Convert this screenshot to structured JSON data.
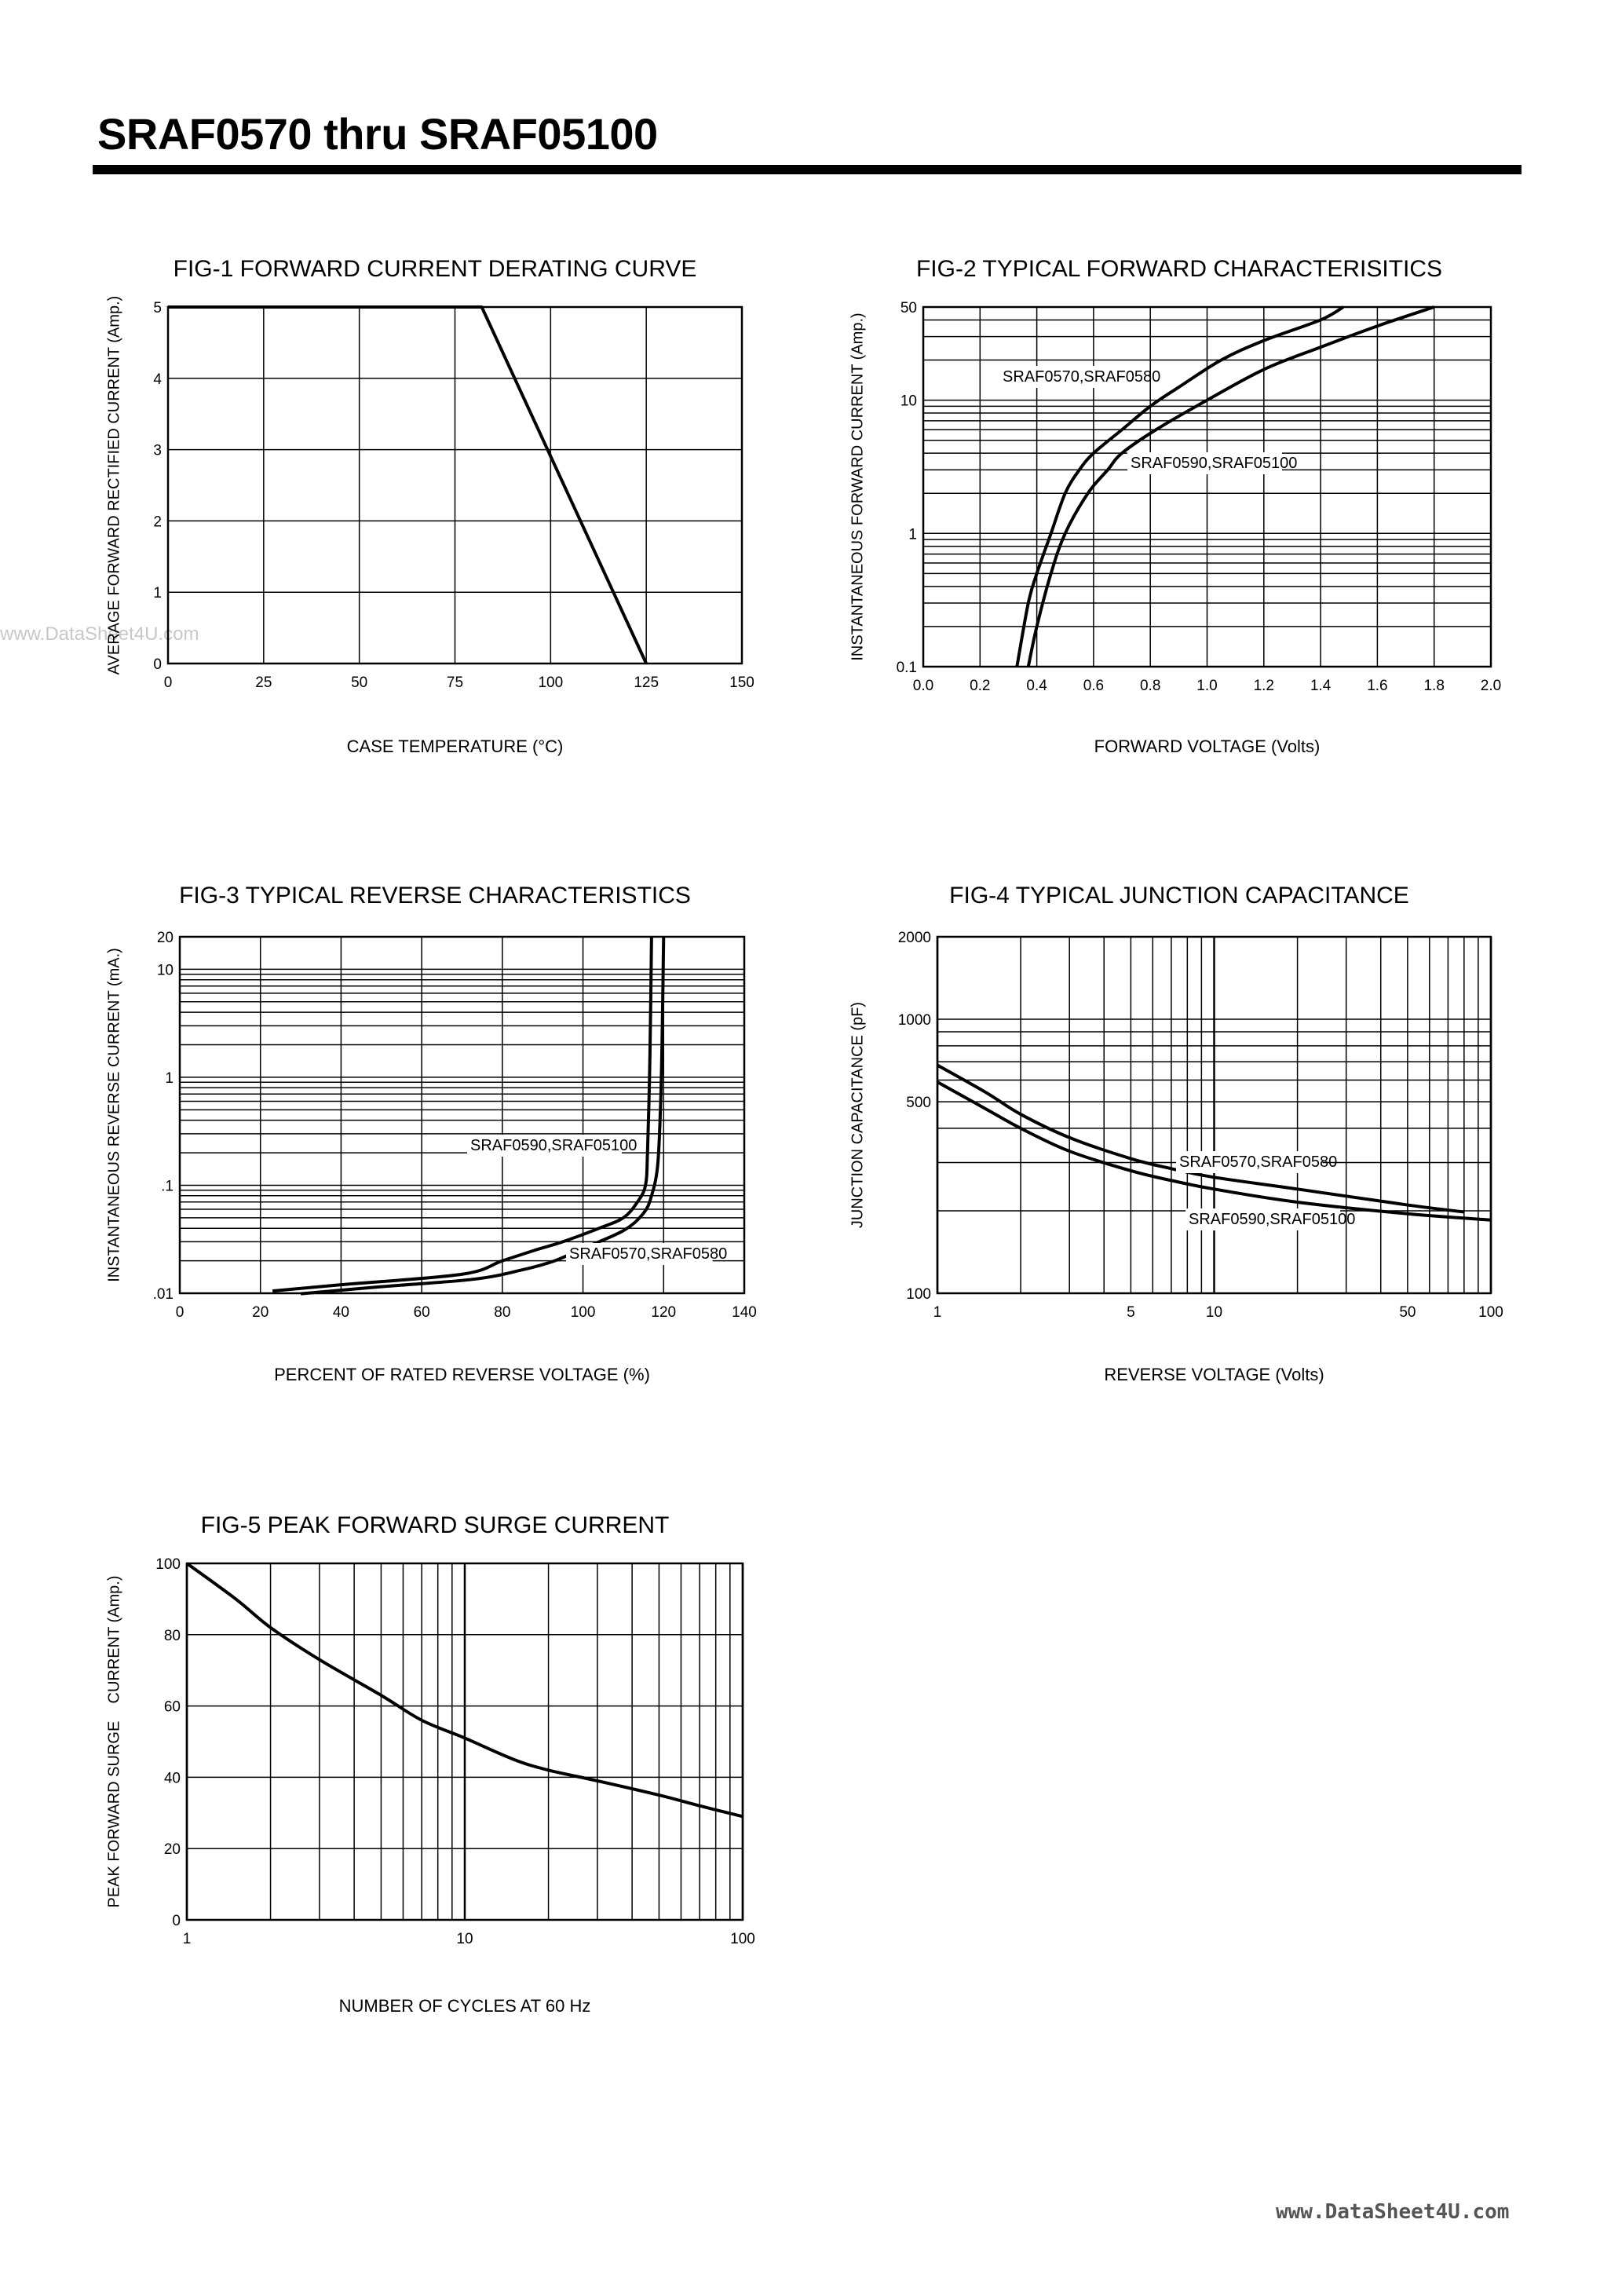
{
  "header": {
    "title": "SRAF0570 thru SRAF05100"
  },
  "watermarks": {
    "left": "www.DataSheet4U.com",
    "bottom_right": "www.DataSheet4U.com"
  },
  "chart_data": [
    {
      "id": "fig1",
      "type": "line",
      "title": "FIG-1 FORWARD CURRENT DERATING CURVE",
      "xlabel": "CASE TEMPERATURE (°C)",
      "ylabel": "AVERAGE FORWARD RECTIFIED CURRENT (Amp.)",
      "xscale": "linear",
      "yscale": "linear",
      "xlim": [
        0,
        150
      ],
      "ylim": [
        0,
        5
      ],
      "xticks": [
        0,
        25,
        50,
        75,
        100,
        125,
        150
      ],
      "xtick_labels": [
        "0",
        "25",
        "50",
        "75",
        "100",
        "125",
        "150"
      ],
      "yticks": [
        0,
        1,
        2,
        3,
        4,
        5
      ],
      "ytick_labels": [
        "0",
        "1",
        "2",
        "3",
        "4",
        "5"
      ],
      "grid": true,
      "series": [
        {
          "x": [
            0,
            82,
            125
          ],
          "y": [
            5,
            5,
            0
          ]
        }
      ]
    },
    {
      "id": "fig2",
      "type": "line",
      "title": "FIG-2 TYPICAL FORWARD CHARACTERISITICS",
      "xlabel": "FORWARD VOLTAGE (Volts)",
      "ylabel": "INSTANTANEOUS FORWARD CURRENT (Amp.)",
      "xscale": "linear",
      "yscale": "log",
      "xlim": [
        0,
        2.0
      ],
      "ylim": [
        0.1,
        50
      ],
      "xticks": [
        0,
        0.2,
        0.4,
        0.6,
        0.8,
        1.0,
        1.2,
        1.4,
        1.6,
        1.8,
        2.0
      ],
      "xtick_labels": [
        "0.0",
        "0.2",
        "0.4",
        "0.6",
        "0.8",
        "1.0",
        "1.2",
        "1.4",
        "1.6",
        "1.8",
        "2.0"
      ],
      "yticks": [
        0.1,
        1,
        10,
        50
      ],
      "ytick_labels": [
        "0.1",
        "1",
        "10",
        "50"
      ],
      "grid": true,
      "series": [
        {
          "name": "SRAF0570,SRAF0580",
          "x": [
            0.33,
            0.37,
            0.4,
            0.45,
            0.5,
            0.55,
            0.6,
            0.7,
            0.8,
            0.9,
            1.05,
            1.2,
            1.4,
            1.48
          ],
          "y": [
            0.1,
            0.3,
            0.5,
            1,
            2,
            3,
            4,
            6,
            9,
            12.5,
            20,
            28,
            40,
            50
          ]
        },
        {
          "name": "SRAF0590,SRAF05100",
          "x": [
            0.37,
            0.4,
            0.45,
            0.5,
            0.58,
            0.65,
            0.7,
            0.82,
            1.0,
            1.2,
            1.4,
            1.6,
            1.8
          ],
          "y": [
            0.1,
            0.2,
            0.5,
            1,
            2,
            3,
            4,
            6,
            10,
            17,
            25,
            36,
            50
          ]
        }
      ]
    },
    {
      "id": "fig3",
      "type": "line",
      "title": "FIG-3 TYPICAL REVERSE CHARACTERISTICS",
      "xlabel": "PERCENT OF RATED REVERSE VOLTAGE (%)",
      "ylabel": "INSTANTANEOUS REVERSE CURRENT (mA.)",
      "xscale": "linear",
      "yscale": "log",
      "xlim": [
        0,
        140
      ],
      "ylim": [
        0.01,
        20
      ],
      "xticks": [
        0,
        20,
        40,
        60,
        80,
        100,
        120,
        140
      ],
      "xtick_labels": [
        "0",
        "20",
        "40",
        "60",
        "80",
        "100",
        "120",
        "140"
      ],
      "yticks": [
        0.01,
        0.1,
        1,
        10,
        20
      ],
      "ytick_labels": [
        ".01",
        ".1",
        "1",
        "10",
        "20"
      ],
      "grid": true,
      "series": [
        {
          "name": "SRAF0590,SRAF05100",
          "x": [
            23,
            40,
            70,
            80,
            88,
            95,
            104,
            110,
            113.5,
            115.5,
            116,
            116.5,
            116.8,
            117
          ],
          "y": [
            0.0105,
            0.012,
            0.015,
            0.02,
            0.025,
            0.03,
            0.04,
            0.05,
            0.07,
            0.1,
            0.2,
            1,
            5,
            20
          ]
        },
        {
          "name": "SRAF0570,SRAF0580",
          "x": [
            30,
            50,
            73,
            85,
            93,
            100,
            110,
            115,
            117,
            118.5,
            119.2,
            119.6,
            120
          ],
          "y": [
            0.0099,
            0.0115,
            0.0135,
            0.0165,
            0.02,
            0.026,
            0.038,
            0.055,
            0.08,
            0.15,
            0.5,
            2,
            20
          ]
        }
      ]
    },
    {
      "id": "fig4",
      "type": "line",
      "title": "FIG-4 TYPICAL JUNCTION CAPACITANCE",
      "xlabel": "REVERSE VOLTAGE (Volts)",
      "ylabel": "JUNCTION CAPACITANCE (pF)",
      "xscale": "log",
      "yscale": "log",
      "xlim": [
        1,
        100
      ],
      "ylim": [
        100,
        2000
      ],
      "xticks": [
        1,
        5,
        10,
        50,
        100
      ],
      "xtick_labels": [
        "1",
        "5",
        "10",
        "50",
        "100"
      ],
      "yticks": [
        100,
        500,
        1000,
        2000
      ],
      "ytick_labels": [
        "100",
        "500",
        "1000",
        "2000"
      ],
      "grid": true,
      "series": [
        {
          "name": "SRAF0570,SRAF0580",
          "x": [
            1,
            1.5,
            2,
            3,
            5,
            7,
            10,
            20,
            50,
            80
          ],
          "y": [
            680,
            540,
            450,
            370,
            310,
            285,
            265,
            240,
            210,
            198
          ]
        },
        {
          "name": "SRAF0590,SRAF05100",
          "x": [
            1,
            1.5,
            2,
            3,
            5,
            7,
            10,
            20,
            50,
            100
          ],
          "y": [
            590,
            470,
            400,
            330,
            280,
            258,
            240,
            215,
            195,
            185
          ]
        }
      ]
    },
    {
      "id": "fig5",
      "type": "line",
      "title": "FIG-5 PEAK FORWARD SURGE CURRENT",
      "xlabel": "NUMBER OF CYCLES AT 60 Hz",
      "ylabel": "PEAK FORWARD SURGE    CURRENT (Amp.)",
      "xscale": "log",
      "yscale": "linear",
      "xlim": [
        1,
        100
      ],
      "ylim": [
        0,
        100
      ],
      "xticks": [
        1,
        10,
        100
      ],
      "xtick_labels": [
        "1",
        "10",
        "100"
      ],
      "yticks": [
        0,
        20,
        40,
        60,
        80,
        100
      ],
      "ytick_labels": [
        "0",
        "20",
        "40",
        "60",
        "80",
        "100"
      ],
      "grid": true,
      "series": [
        {
          "x": [
            1,
            1.5,
            2,
            3,
            5,
            7,
            10,
            15,
            20,
            30,
            50,
            70,
            100
          ],
          "y": [
            100,
            90,
            82,
            73,
            63,
            56,
            51,
            45,
            42,
            39,
            35,
            32,
            29
          ]
        }
      ]
    }
  ]
}
